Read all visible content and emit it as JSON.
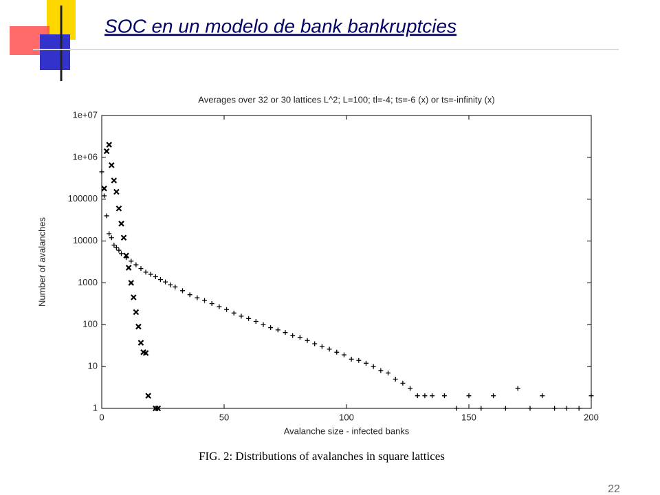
{
  "slide": {
    "title": "SOC en un modelo de bank bankruptcies",
    "caption": "FIG. 2: Distributions of avalanches in square lattices",
    "page_number": "22"
  },
  "chart_data": {
    "type": "scatter",
    "title": "Averages over 32 or 30 lattices L^2; L=100; tl=-4; ts=-6 (x) or ts=-infinity (x)",
    "xlabel": "Avalanche size - infected banks",
    "ylabel": "Number of avalanches",
    "xlim": [
      0,
      200
    ],
    "xticks": [
      0,
      50,
      100,
      150,
      200
    ],
    "ylim": [
      1,
      10000000
    ],
    "log_y": true,
    "yticks": [
      1,
      10,
      100,
      1000,
      10000,
      100000,
      {
        "value": 1000000,
        "label": "1e+06"
      },
      {
        "value": 10000000,
        "label": "1e+07"
      }
    ],
    "series": [
      {
        "color": "#000000",
        "marker": "+",
        "x": [
          0,
          1,
          2,
          3,
          4,
          5,
          6,
          7,
          8,
          10,
          12,
          14,
          16,
          18,
          20,
          22,
          24,
          26,
          28,
          30,
          33,
          36,
          39,
          42,
          45,
          48,
          51,
          54,
          57,
          60,
          63,
          66,
          69,
          72,
          75,
          78,
          81,
          84,
          87,
          90,
          93,
          96,
          99,
          102,
          105,
          108,
          111,
          114,
          117,
          120,
          123,
          126,
          129,
          132,
          135,
          140,
          145,
          150,
          155,
          160,
          165,
          170,
          175,
          180,
          185,
          190,
          195,
          200
        ],
        "values": [
          450000,
          120000,
          40000,
          15000,
          12000,
          8000,
          7000,
          6000,
          5000,
          4000,
          3300,
          2700,
          2200,
          1800,
          1600,
          1400,
          1200,
          1050,
          900,
          800,
          650,
          520,
          440,
          380,
          320,
          270,
          230,
          190,
          160,
          140,
          120,
          100,
          85,
          75,
          65,
          55,
          50,
          42,
          35,
          30,
          26,
          22,
          19,
          15,
          14,
          12,
          10,
          8,
          7,
          5,
          4,
          3,
          2,
          2,
          2,
          2,
          1,
          2,
          1,
          2,
          1,
          3,
          1,
          2,
          1,
          1,
          1,
          2
        ]
      },
      {
        "color": "#000000",
        "marker": "x",
        "x": [
          1,
          2,
          3,
          4,
          5,
          6,
          7,
          8,
          9,
          10,
          11,
          12,
          13,
          14,
          15,
          16,
          17,
          18,
          19,
          22,
          23
        ],
        "values": [
          180000,
          1400000,
          2000000,
          650000,
          280000,
          150000,
          60000,
          26000,
          12000,
          4500,
          2300,
          1000,
          450,
          200,
          90,
          37,
          22,
          21,
          2,
          1,
          1
        ]
      }
    ]
  }
}
